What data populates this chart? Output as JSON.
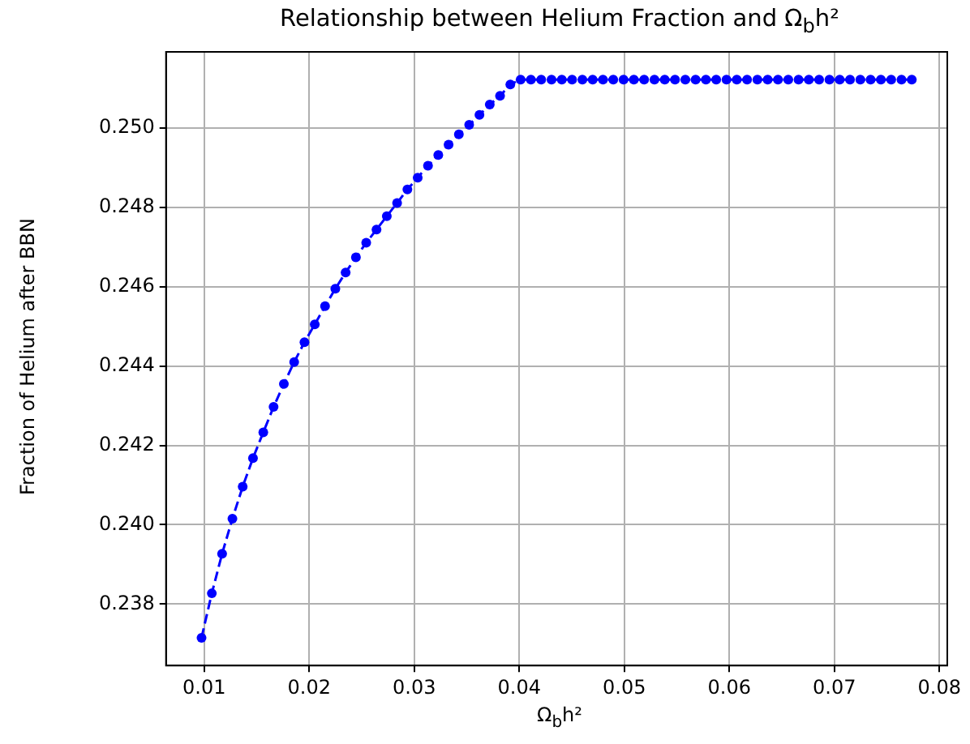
{
  "chart_data": {
    "type": "line",
    "title": "Relationship between Helium Fraction and Ω$_{b}$h²",
    "xlabel": "Ω$_{b}$h²",
    "ylabel": "Fraction of Helium after BBN",
    "x": [
      0.00975,
      0.01073,
      0.01171,
      0.01269,
      0.01367,
      0.01465,
      0.01563,
      0.01661,
      0.01759,
      0.01857,
      0.01955,
      0.02053,
      0.02151,
      0.02249,
      0.02347,
      0.02445,
      0.02543,
      0.02641,
      0.02739,
      0.02837,
      0.02935,
      0.03033,
      0.03131,
      0.03229,
      0.03327,
      0.03425,
      0.03523,
      0.03621,
      0.03719,
      0.03817,
      0.03915,
      0.04013,
      0.04111,
      0.04209,
      0.04307,
      0.04405,
      0.04503,
      0.04601,
      0.04699,
      0.04797,
      0.04895,
      0.04993,
      0.05091,
      0.05189,
      0.05287,
      0.05385,
      0.05483,
      0.05581,
      0.05679,
      0.05777,
      0.05875,
      0.05973,
      0.06071,
      0.06169,
      0.06267,
      0.06365,
      0.06463,
      0.06561,
      0.06659,
      0.06757,
      0.06855,
      0.06953,
      0.07051,
      0.07149,
      0.07247,
      0.07345,
      0.07443,
      0.07541,
      0.07639,
      0.07737
    ],
    "series": [
      {
        "color": "#0000ff",
        "values": [
          0.23715,
          0.23827,
          0.23927,
          0.24015,
          0.24096,
          0.24168,
          0.24233,
          0.24297,
          0.24355,
          0.2441,
          0.2446,
          0.24505,
          0.24551,
          0.24595,
          0.24636,
          0.24674,
          0.24711,
          0.24744,
          0.24778,
          0.24811,
          0.24845,
          0.24875,
          0.24905,
          0.24932,
          0.24958,
          0.24984,
          0.25008,
          0.25033,
          0.25059,
          0.25081,
          0.2511,
          0.25122,
          0.25122,
          0.25122,
          0.25122,
          0.25122,
          0.25122,
          0.25122,
          0.25122,
          0.25122,
          0.25122,
          0.25122,
          0.25122,
          0.25122,
          0.25122,
          0.25122,
          0.25122,
          0.25122,
          0.25122,
          0.25122,
          0.25122,
          0.25122,
          0.25122,
          0.25122,
          0.25122,
          0.25122,
          0.25122,
          0.25122,
          0.25122,
          0.25122,
          0.25122,
          0.25122,
          0.25122,
          0.25122,
          0.25122,
          0.25122,
          0.25122,
          0.25122,
          0.25122,
          0.25122
        ]
      }
    ],
    "xlim": [
      0.00637,
      0.08075
    ],
    "ylim": [
      0.23645,
      0.25192
    ],
    "xticks": [
      0.01,
      0.02,
      0.03,
      0.04,
      0.05,
      0.06,
      0.07,
      0.08
    ],
    "yticks": [
      0.238,
      {
        "value": 0.24,
        "label": "0.240"
      },
      0.242,
      0.244,
      0.246,
      0.248,
      {
        "value": 0.25,
        "label": "0.250"
      }
    ],
    "grid": true,
    "legend": false,
    "marker": "circle",
    "line_style": "dashed"
  }
}
